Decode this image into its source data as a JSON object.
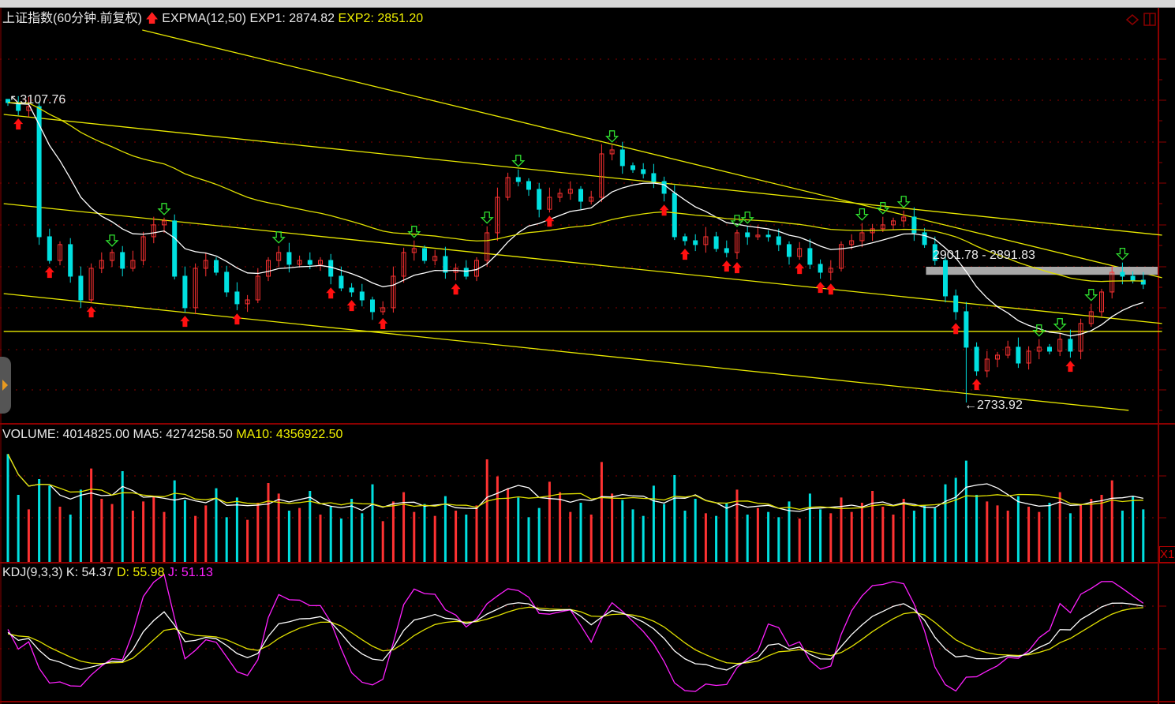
{
  "header": {
    "title": "上证指数(60分钟.前复权)",
    "indicator": "EXPMA(12,50)",
    "exp1": "EXP1: 2874.82",
    "exp2": "EXP2: 2851.20"
  },
  "volume_header": {
    "volume": "VOLUME: 4014825.00",
    "ma5": "MA5: 4274258.50",
    "ma10": "MA10: 4356922.50"
  },
  "kdj_header": {
    "name": "KDJ(9,3,3)",
    "k": "K: 54.37",
    "d": "D: 55.98",
    "j": "J: 51.13"
  },
  "annotations": {
    "high": "3107.76",
    "low": "2733.92",
    "range": "2901.78 - 2891.83"
  },
  "right_panel": {
    "scale_button": "X1"
  },
  "colors": {
    "up": "#ff3232",
    "down": "#00e0e0",
    "exp1": "#ffffff",
    "exp2": "#e0e000",
    "trend": "#e8e800",
    "grid": "#8b0000",
    "signal_buy": "#ff1010",
    "signal_sell": "#30e030",
    "j_line": "#ff20ff"
  },
  "chart_data": {
    "type": "candlestick",
    "price_range": [
      2709.5,
      3194.6
    ],
    "close": [
      3104.8,
      3095.1,
      3099.9,
      2938.9,
      2909.6,
      2929.2,
      2890.1,
      2860.8,
      2899.9,
      2909.6,
      2919.4,
      2899.9,
      2909.6,
      2938.9,
      2953.6,
      2958.5,
      2890.1,
      2851.1,
      2899.9,
      2909.6,
      2895.0,
      2870.6,
      2856.0,
      2860.8,
      2890.1,
      2909.6,
      2919.4,
      2904.8,
      2909.6,
      2904.8,
      2909.6,
      2890.1,
      2875.5,
      2870.6,
      2860.8,
      2846.2,
      2851.1,
      2890.1,
      2919.4,
      2924.3,
      2909.6,
      2914.5,
      2895.0,
      2899.9,
      2890.1,
      2909.6,
      2943.8,
      2987.7,
      3012.1,
      3007.2,
      2997.5,
      2972.9,
      2987.7,
      2992.6,
      2997.5,
      2982.8,
      2987.7,
      3041.4,
      3046.3,
      3026.8,
      3021.9,
      3017.0,
      3007.2,
      2992.6,
      2938.9,
      2934.0,
      2929.2,
      2938.9,
      2924.3,
      2919.4,
      2943.8,
      2938.9,
      2940.9,
      2938.9,
      2929.2,
      2914.5,
      2924.3,
      2904.8,
      2895.0,
      2899.9,
      2929.2,
      2934.0,
      2943.8,
      2948.7,
      2953.6,
      2958.5,
      2963.3,
      2943.8,
      2929.2,
      2909.6,
      2865.7,
      2846.2,
      2802.3,
      2773.0,
      2787.6,
      2792.5,
      2802.3,
      2782.7,
      2797.4,
      2802.3,
      2797.4,
      2812.1,
      2797.4,
      2831.6,
      2846.2,
      2870.6,
      2895.0,
      2890.1,
      2885.2,
      2880.3
    ],
    "extremes": [
      {
        "index": 0,
        "price": 3107.76,
        "label": "high"
      },
      {
        "index": 92,
        "price": 2733.92,
        "label": "low"
      }
    ],
    "expma_periods": [
      12,
      50
    ],
    "trendlines": [
      {
        "from": [
          12.9,
          3194.6
        ],
        "to": [
          110.8,
          2888.2
        ]
      },
      {
        "from": [
          -0.4,
          3090.2
        ],
        "to": [
          110.8,
          2940.9
        ]
      },
      {
        "from": [
          -0.4,
          2979.9
        ],
        "to": [
          110.8,
          2831.6
        ]
      },
      {
        "from": [
          -0.4,
          2868.6
        ],
        "to": [
          107.6,
          2724.2
        ]
      },
      {
        "from": [
          -0.4,
          2821.8
        ],
        "to": [
          110.8,
          2821.8
        ]
      }
    ],
    "range_band": {
      "from_index": 88.9,
      "price_high": 2901.78,
      "price_low": 2891.83
    },
    "buy_signals": [
      1,
      4,
      8,
      17,
      22,
      31,
      33,
      36,
      43,
      52,
      63,
      65,
      69,
      70,
      76,
      78,
      79,
      91,
      93,
      102
    ],
    "sell_signals": [
      10,
      15,
      26,
      39,
      46,
      49,
      58,
      70,
      71,
      82,
      84,
      86,
      99,
      101,
      104,
      107
    ],
    "volume_millions": [
      8.2,
      5.1,
      4.0,
      6.3,
      5.8,
      4.2,
      3.6,
      5.5,
      7.1,
      4.8,
      4.4,
      6.9,
      3.9,
      4.6,
      5.0,
      3.8,
      6.2,
      4.7,
      3.5,
      4.3,
      5.6,
      3.4,
      4.9,
      3.2,
      4.5,
      6.0,
      5.2,
      3.9,
      4.1,
      5.4,
      3.6,
      4.2,
      3.3,
      4.8,
      3.7,
      5.9,
      3.1,
      4.6,
      5.3,
      3.8,
      4.4,
      3.5,
      5.0,
      3.9,
      3.6,
      4.3,
      7.8,
      6.5,
      5.6,
      4.9,
      3.4,
      4.1,
      6.1,
      5.3,
      3.8,
      4.5,
      3.6,
      7.6,
      5.2,
      4.7,
      4.0,
      3.5,
      5.8,
      4.4,
      6.6,
      3.9,
      4.8,
      3.7,
      3.5,
      4.5,
      5.5,
      3.6,
      4.1,
      3.8,
      3.4,
      4.6,
      3.3,
      5.2,
      4.0,
      3.7,
      4.9,
      3.8,
      4.5,
      5.4,
      4.2,
      3.6,
      4.8,
      3.9,
      4.3,
      4.1,
      5.9,
      6.4,
      7.7,
      5.1,
      4.6,
      4.3,
      3.9,
      5.0,
      4.2,
      3.8,
      4.5,
      5.3,
      3.7,
      4.4,
      4.8,
      5.1,
      6.2,
      3.9,
      5.0,
      4.0
    ],
    "volume_ma_periods": [
      5,
      10
    ],
    "kdj_params": [
      9,
      3,
      3
    ]
  }
}
